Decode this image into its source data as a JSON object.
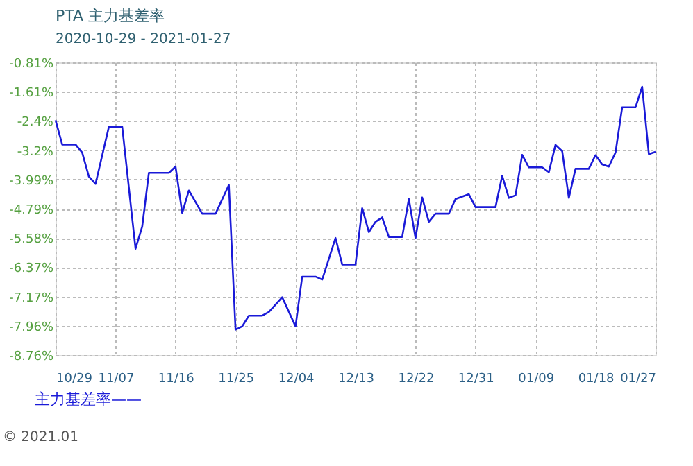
{
  "chart_data": {
    "type": "line",
    "title": "PTA 主力基差率",
    "subtitle": "2020-10-29 - 2021-01-27",
    "x": [
      "2020-10-29",
      "2020-10-30",
      "2020-11-01",
      "2020-11-02",
      "2020-11-03",
      "2020-11-04",
      "2020-11-06",
      "2020-11-08",
      "2020-11-10",
      "2020-11-11",
      "2020-11-12",
      "2020-11-15",
      "2020-11-16",
      "2020-11-17",
      "2020-11-18",
      "2020-11-20",
      "2020-11-22",
      "2020-11-24",
      "2020-11-25",
      "2020-11-26",
      "2020-11-27",
      "2020-11-29",
      "2020-11-30",
      "2020-12-02",
      "2020-12-04",
      "2020-12-05",
      "2020-12-07",
      "2020-12-08",
      "2020-12-09",
      "2020-12-10",
      "2020-12-11",
      "2020-12-13",
      "2020-12-14",
      "2020-12-15",
      "2020-12-16",
      "2020-12-17",
      "2020-12-18",
      "2020-12-20",
      "2020-12-21",
      "2020-12-22",
      "2020-12-23",
      "2020-12-24",
      "2020-12-25",
      "2020-12-27",
      "2020-12-28",
      "2020-12-30",
      "2020-12-31",
      "2021-01-03",
      "2021-01-04",
      "2021-01-05",
      "2021-01-06",
      "2021-01-07",
      "2021-01-08",
      "2021-01-10",
      "2021-01-11",
      "2021-01-12",
      "2021-01-13",
      "2021-01-14",
      "2021-01-15",
      "2021-01-17",
      "2021-01-18",
      "2021-01-19",
      "2021-01-20",
      "2021-01-21",
      "2021-01-22",
      "2021-01-24",
      "2021-01-25",
      "2021-01-26",
      "2021-01-27"
    ],
    "series": [
      {
        "name": "主力基差率——",
        "color": "#1a1ad8",
        "values": [
          -2.38,
          -3.04,
          -3.04,
          -3.26,
          -3.91,
          -4.11,
          -2.56,
          -2.56,
          -5.87,
          -5.27,
          -3.81,
          -3.81,
          -3.64,
          -4.9,
          -4.29,
          -4.92,
          -4.92,
          -4.14,
          -8.07,
          -7.98,
          -7.69,
          -7.69,
          -7.59,
          -7.19,
          -7.98,
          -6.63,
          -6.63,
          -6.71,
          -6.15,
          -5.58,
          -6.3,
          -6.3,
          -4.77,
          -5.42,
          -5.14,
          -5.02,
          -5.55,
          -5.55,
          -4.52,
          -5.58,
          -4.48,
          -5.14,
          -4.92,
          -4.92,
          -4.52,
          -4.39,
          -4.74,
          -4.74,
          -3.89,
          -4.49,
          -4.42,
          -3.32,
          -3.66,
          -3.66,
          -3.79,
          -3.05,
          -3.22,
          -4.49,
          -3.7,
          -3.7,
          -3.33,
          -3.58,
          -3.64,
          -3.26,
          -2.03,
          -2.03,
          -1.47,
          -3.3,
          -3.24
        ]
      }
    ],
    "xlim": [
      "2020-10-29",
      "2021-01-27"
    ],
    "xticks": [
      {
        "value": "2020-10-29",
        "label": "10/29"
      },
      {
        "value": "2020-11-07",
        "label": "11/07"
      },
      {
        "value": "2020-11-16",
        "label": "11/16"
      },
      {
        "value": "2020-11-25",
        "label": "11/25"
      },
      {
        "value": "2020-12-04",
        "label": "12/04"
      },
      {
        "value": "2020-12-13",
        "label": "12/13"
      },
      {
        "value": "2020-12-22",
        "label": "12/22"
      },
      {
        "value": "2020-12-31",
        "label": "12/31"
      },
      {
        "value": "2021-01-09",
        "label": "01/09"
      },
      {
        "value": "2021-01-18",
        "label": "01/18"
      },
      {
        "value": "2021-01-27",
        "label": "01/27"
      }
    ],
    "ylim": [
      -8.76,
      -0.81
    ],
    "yticks": [
      {
        "value": -0.81,
        "label": "-0.81%"
      },
      {
        "value": -1.61,
        "label": "-1.61%"
      },
      {
        "value": -2.4,
        "label": "-2.4%"
      },
      {
        "value": -3.2,
        "label": "-3.2%"
      },
      {
        "value": -3.99,
        "label": "-3.99%"
      },
      {
        "value": -4.79,
        "label": "-4.79%"
      },
      {
        "value": -5.58,
        "label": "-5.58%"
      },
      {
        "value": -6.37,
        "label": "-6.37%"
      },
      {
        "value": -7.17,
        "label": "-7.17%"
      },
      {
        "value": -7.96,
        "label": "-7.96%"
      },
      {
        "value": -8.76,
        "label": "-8.76%"
      }
    ],
    "grid": true,
    "legend": "bottom left",
    "marker": "none",
    "line_style": "solid",
    "annotations": [
      "© 2021.01"
    ]
  }
}
